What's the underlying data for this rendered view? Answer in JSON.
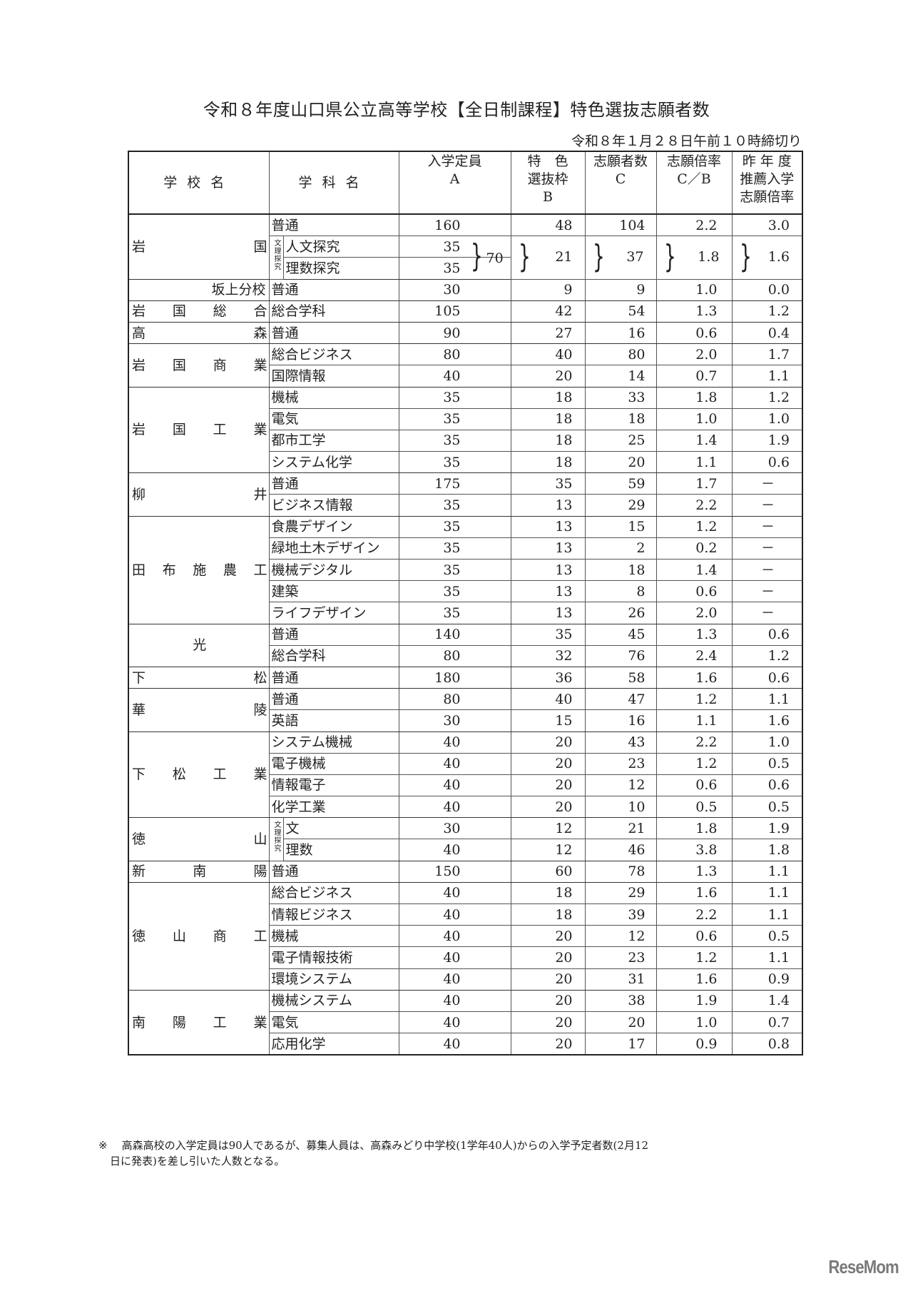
{
  "title": "令和８年度山口県公立高等学校【全日制課程】特色選抜志願者数",
  "deadline": "令和８年１月２８日午前１０時締切り",
  "headers": {
    "school": "学校名",
    "dept": "学科名",
    "capacity": [
      "入学定員",
      "",
      "A"
    ],
    "special_quota": [
      "特　色",
      "選抜枠",
      "B"
    ],
    "applicants": [
      "志願者数",
      "",
      "C"
    ],
    "ratio": [
      "志願倍率",
      "",
      "C／B"
    ],
    "prev_ratio": [
      "昨 年 度",
      "推薦入学",
      "志願倍率"
    ]
  },
  "schools": [
    {
      "name": "岩国",
      "rows": [
        {
          "dept": "普通",
          "A": "160",
          "B": "48",
          "C": "104",
          "ratio": "2.2",
          "prev": "3.0"
        },
        {
          "dept": "人文探究",
          "A": "35",
          "sub": "文理探究"
        },
        {
          "dept": "理数探究",
          "A": "35"
        }
      ],
      "merged": {
        "A_total": "70",
        "B": "21",
        "C": "37",
        "ratio": "1.8",
        "prev": "1.6"
      }
    },
    {
      "name": "坂上分校",
      "align": "right",
      "rows": [
        {
          "dept": "普通",
          "A": "30",
          "B": "9",
          "C": "9",
          "ratio": "1.0",
          "prev": "0.0"
        }
      ]
    },
    {
      "name": "岩国総合",
      "rows": [
        {
          "dept": "総合学科",
          "A": "105",
          "B": "42",
          "C": "54",
          "ratio": "1.3",
          "prev": "1.2"
        }
      ]
    },
    {
      "name": "高森",
      "rows": [
        {
          "dept": "普通",
          "A": "90",
          "B": "27",
          "C": "16",
          "ratio": "0.6",
          "prev": "0.4"
        }
      ]
    },
    {
      "name": "岩国商業",
      "rows": [
        {
          "dept": "総合ビジネス",
          "A": "80",
          "B": "40",
          "C": "80",
          "ratio": "2.0",
          "prev": "1.7"
        },
        {
          "dept": "国際情報",
          "A": "40",
          "B": "20",
          "C": "14",
          "ratio": "0.7",
          "prev": "1.1"
        }
      ]
    },
    {
      "name": "岩国工業",
      "rows": [
        {
          "dept": "機械",
          "A": "35",
          "B": "18",
          "C": "33",
          "ratio": "1.8",
          "prev": "1.2"
        },
        {
          "dept": "電気",
          "A": "35",
          "B": "18",
          "C": "18",
          "ratio": "1.0",
          "prev": "1.0"
        },
        {
          "dept": "都市工学",
          "A": "35",
          "B": "18",
          "C": "25",
          "ratio": "1.4",
          "prev": "1.9"
        },
        {
          "dept": "システム化学",
          "A": "35",
          "B": "18",
          "C": "20",
          "ratio": "1.1",
          "prev": "0.6"
        }
      ]
    },
    {
      "name": "柳井",
      "rows": [
        {
          "dept": "普通",
          "A": "175",
          "B": "35",
          "C": "59",
          "ratio": "1.7",
          "prev": "－"
        },
        {
          "dept": "ビジネス情報",
          "A": "35",
          "B": "13",
          "C": "29",
          "ratio": "2.2",
          "prev": "－"
        }
      ]
    },
    {
      "name": "田布施農工",
      "rows": [
        {
          "dept": "食農デザイン",
          "A": "35",
          "B": "13",
          "C": "15",
          "ratio": "1.2",
          "prev": "－"
        },
        {
          "dept": "緑地土木デザイン",
          "A": "35",
          "B": "13",
          "C": "2",
          "ratio": "0.2",
          "prev": "－"
        },
        {
          "dept": "機械デジタル",
          "A": "35",
          "B": "13",
          "C": "18",
          "ratio": "1.4",
          "prev": "－"
        },
        {
          "dept": "建築",
          "A": "35",
          "B": "13",
          "C": "8",
          "ratio": "0.6",
          "prev": "－"
        },
        {
          "dept": "ライフデザイン",
          "A": "35",
          "B": "13",
          "C": "26",
          "ratio": "2.0",
          "prev": "－"
        }
      ]
    },
    {
      "name": "光",
      "align": "center",
      "rows": [
        {
          "dept": "普通",
          "A": "140",
          "B": "35",
          "C": "45",
          "ratio": "1.3",
          "prev": "0.6"
        },
        {
          "dept": "総合学科",
          "A": "80",
          "B": "32",
          "C": "76",
          "ratio": "2.4",
          "prev": "1.2"
        }
      ]
    },
    {
      "name": "下松",
      "rows": [
        {
          "dept": "普通",
          "A": "180",
          "B": "36",
          "C": "58",
          "ratio": "1.6",
          "prev": "0.6"
        }
      ]
    },
    {
      "name": "華陵",
      "rows": [
        {
          "dept": "普通",
          "A": "80",
          "B": "40",
          "C": "47",
          "ratio": "1.2",
          "prev": "1.1"
        },
        {
          "dept": "英語",
          "A": "30",
          "B": "15",
          "C": "16",
          "ratio": "1.1",
          "prev": "1.6"
        }
      ]
    },
    {
      "name": "下松工業",
      "rows": [
        {
          "dept": "システム機械",
          "A": "40",
          "B": "20",
          "C": "43",
          "ratio": "2.2",
          "prev": "1.0"
        },
        {
          "dept": "電子機械",
          "A": "40",
          "B": "20",
          "C": "23",
          "ratio": "1.2",
          "prev": "0.5"
        },
        {
          "dept": "情報電子",
          "A": "40",
          "B": "20",
          "C": "12",
          "ratio": "0.6",
          "prev": "0.6"
        },
        {
          "dept": "化学工業",
          "A": "40",
          "B": "20",
          "C": "10",
          "ratio": "0.5",
          "prev": "0.5"
        }
      ]
    },
    {
      "name": "徳山",
      "rows": [
        {
          "dept": "文",
          "A": "30",
          "B": "12",
          "C": "21",
          "ratio": "1.8",
          "prev": "1.9",
          "sub": "文理探究"
        },
        {
          "dept": "理数",
          "A": "40",
          "B": "12",
          "C": "46",
          "ratio": "3.8",
          "prev": "1.8"
        }
      ]
    },
    {
      "name": "新南陽",
      "rows": [
        {
          "dept": "普通",
          "A": "150",
          "B": "60",
          "C": "78",
          "ratio": "1.3",
          "prev": "1.1"
        }
      ]
    },
    {
      "name": "徳山商工",
      "rows": [
        {
          "dept": "総合ビジネス",
          "A": "40",
          "B": "18",
          "C": "29",
          "ratio": "1.6",
          "prev": "1.1"
        },
        {
          "dept": "情報ビジネス",
          "A": "40",
          "B": "18",
          "C": "39",
          "ratio": "2.2",
          "prev": "1.1"
        },
        {
          "dept": "機械",
          "A": "40",
          "B": "20",
          "C": "12",
          "ratio": "0.6",
          "prev": "0.5"
        },
        {
          "dept": "電子情報技術",
          "A": "40",
          "B": "20",
          "C": "23",
          "ratio": "1.2",
          "prev": "1.1"
        },
        {
          "dept": "環境システム",
          "A": "40",
          "B": "20",
          "C": "31",
          "ratio": "1.6",
          "prev": "0.9"
        }
      ]
    },
    {
      "name": "南陽工業",
      "rows": [
        {
          "dept": "機械システム",
          "A": "40",
          "B": "20",
          "C": "38",
          "ratio": "1.9",
          "prev": "1.4"
        },
        {
          "dept": "電気",
          "A": "40",
          "B": "20",
          "C": "20",
          "ratio": "1.0",
          "prev": "0.7"
        },
        {
          "dept": "応用化学",
          "A": "40",
          "B": "20",
          "C": "17",
          "ratio": "0.9",
          "prev": "0.8"
        }
      ]
    }
  ],
  "footnote": {
    "mark": "※",
    "line1": "高森高校の入学定員は90人であるが、募集人員は、高森みどり中学校(1学年40人)からの入学予定者数(2月12",
    "line2": "日に発表)を差し引いた人数となる。"
  },
  "logo": "ReseMom"
}
